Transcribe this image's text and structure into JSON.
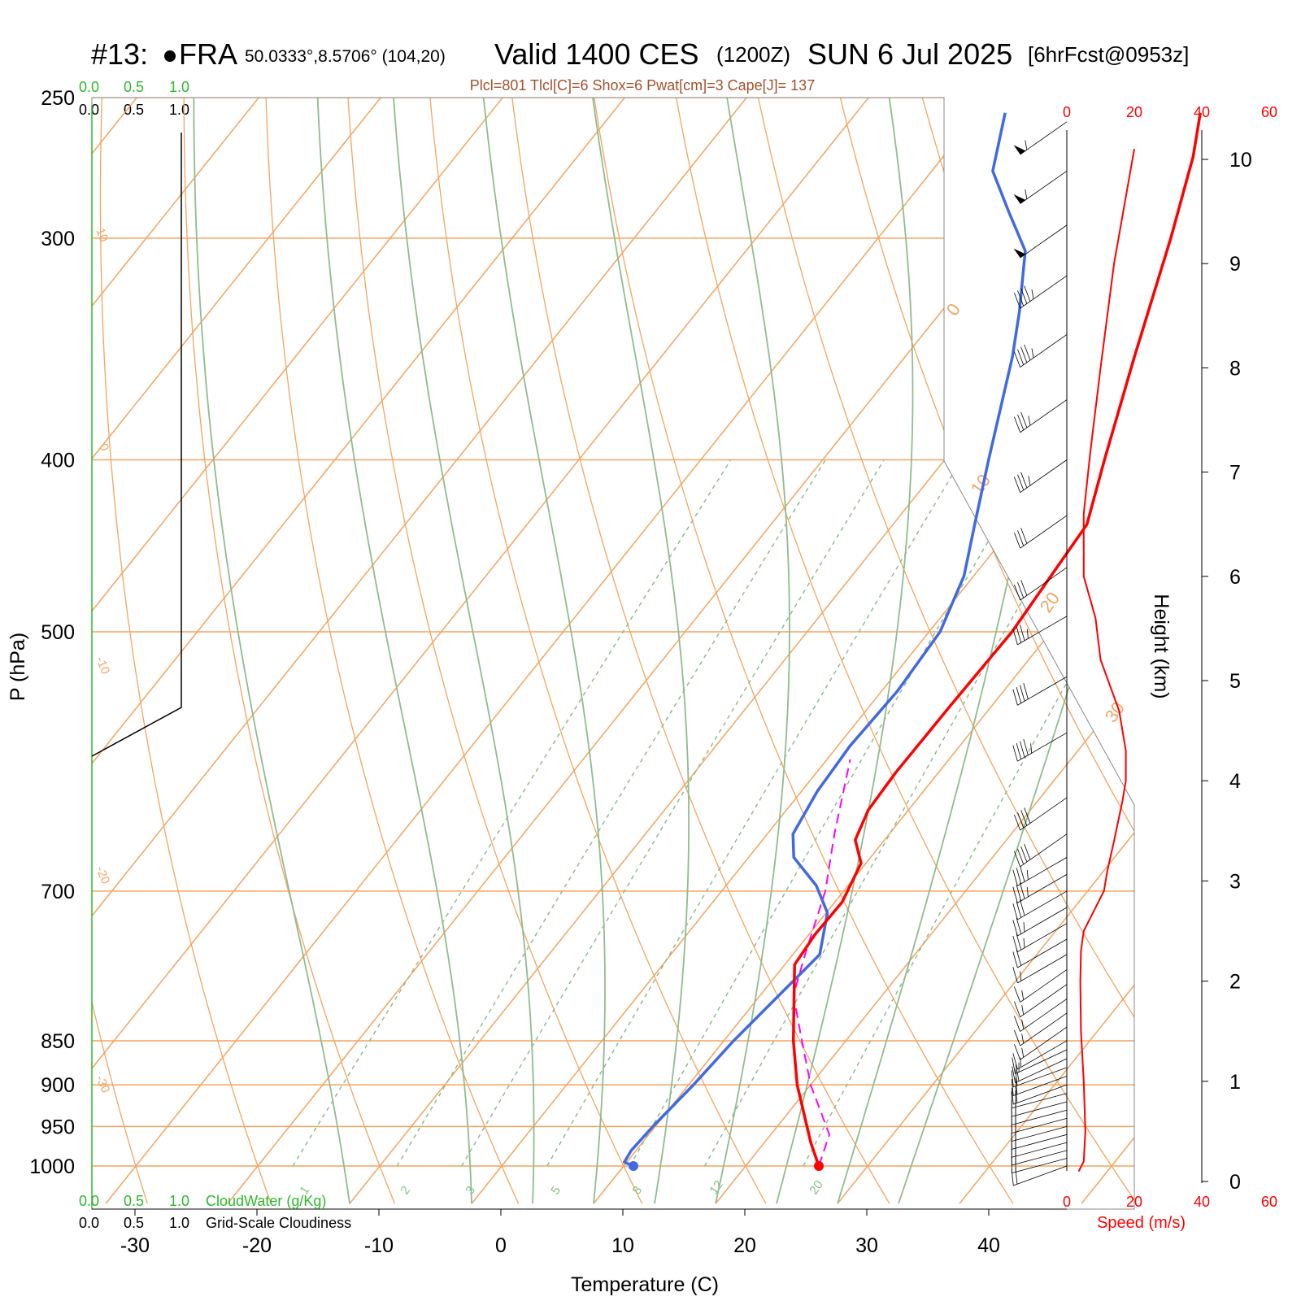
{
  "header": {
    "station_label": "#13: ",
    "station_name": "FRA",
    "coords": "50.0333°,8.5706° (104,20)",
    "valid": "Valid 1400 CES",
    "utc": "(1200Z)",
    "date": "SUN 6 Jul 2025",
    "forecast": "[6hrFcst@0953z]",
    "indices": "Plcl=801 Tlcl[C]=6 Shox=6 Pwat[cm]=3 Cape[J]= 137"
  },
  "panels": {
    "cloud_top_green": [
      "0.0",
      "0.5",
      "1.0"
    ],
    "cloud_top_black": [
      "0.0",
      "0.5",
      "1.0"
    ],
    "cloud_bottom_green": [
      "0.0",
      "0.5",
      "1.0"
    ],
    "cloud_bottom_black": [
      "0.0",
      "0.5",
      "1.0"
    ],
    "cloudwater_label": "CloudWater (g/Kg)",
    "cloudiness_label": "Grid-Scale Cloudiness",
    "speed_ticks": [
      "0",
      "20",
      "40",
      "60"
    ],
    "speed_label": "Speed (m/s)",
    "height_label": "Height (km)"
  },
  "colors": {
    "temperature": "#ff0000",
    "dewpoint": "#4169e1",
    "parcel": "#ff00ff",
    "isotherm": "#f4a460",
    "adiabat": "#8fbc8f",
    "speed": "#ff0000"
  },
  "chart_data": {
    "type": "line",
    "xlabel": "Temperature (C)",
    "ylabel": "P (hPa)",
    "xticks": [
      -30,
      -20,
      -10,
      0,
      10,
      20,
      30,
      40
    ],
    "yticks": [
      250,
      300,
      400,
      500,
      700,
      850,
      900,
      950,
      1000
    ],
    "height_ticks": [
      0,
      1,
      2,
      3,
      4,
      5,
      6,
      7,
      8,
      9,
      10
    ],
    "isotherm_labels": [
      "10",
      "0",
      "-10",
      "-20",
      "-30",
      "0",
      "10",
      "20",
      "30"
    ],
    "mixing_ratio_labels": [
      "1",
      "2",
      "3",
      "5",
      "8",
      "12",
      "20"
    ],
    "series": [
      {
        "label": "temperature",
        "points": [
          [
            1000,
            26.0
          ],
          [
            970,
            23.8
          ],
          [
            900,
            18.9
          ],
          [
            850,
            15.7
          ],
          [
            770,
            10.8
          ],
          [
            740,
            10.5
          ],
          [
            710,
            10.6
          ],
          [
            675,
            9.6
          ],
          [
            655,
            7.6
          ],
          [
            630,
            6.7
          ],
          [
            600,
            6.5
          ],
          [
            550,
            6.6
          ],
          [
            500,
            6.8
          ],
          [
            470,
            6.4
          ],
          [
            435,
            5.9
          ],
          [
            400,
            3.1
          ],
          [
            350,
            -1.2
          ],
          [
            300,
            -6.0
          ],
          [
            270,
            -9.5
          ],
          [
            255,
            -11.8
          ]
        ]
      },
      {
        "label": "dewpoint",
        "points": [
          [
            1000,
            10.8
          ],
          [
            995,
            9.8
          ],
          [
            980,
            9.6
          ],
          [
            950,
            9.8
          ],
          [
            900,
            10.4
          ],
          [
            850,
            10.8
          ],
          [
            760,
            12.2
          ],
          [
            720,
            10.1
          ],
          [
            695,
            7.4
          ],
          [
            670,
            3.7
          ],
          [
            650,
            2.1
          ],
          [
            615,
            1.3
          ],
          [
            580,
            1.0
          ],
          [
            540,
            1.3
          ],
          [
            500,
            0.9
          ],
          [
            465,
            -0.8
          ],
          [
            435,
            -3.3
          ],
          [
            400,
            -6.4
          ],
          [
            350,
            -11.2
          ],
          [
            330,
            -13.6
          ],
          [
            305,
            -17.1
          ],
          [
            290,
            -21.0
          ],
          [
            275,
            -25.0
          ],
          [
            255,
            -27.8
          ]
        ]
      },
      {
        "label": "parcel",
        "points": [
          [
            1000,
            26.0
          ],
          [
            960,
            24.8
          ],
          [
            900,
            20.0
          ],
          [
            850,
            16.4
          ],
          [
            801,
            12.7
          ],
          [
            760,
            11.0
          ],
          [
            700,
            8.5
          ],
          [
            650,
            5.5
          ],
          [
            590,
            1.9
          ]
        ]
      }
    ],
    "wind_barbs": [
      {
        "p": 1000,
        "speed": 10,
        "dir": 250
      },
      {
        "p": 990,
        "speed": 10,
        "dir": 255
      },
      {
        "p": 980,
        "speed": 10,
        "dir": 255
      },
      {
        "p": 970,
        "speed": 11,
        "dir": 255
      },
      {
        "p": 960,
        "speed": 11,
        "dir": 255
      },
      {
        "p": 950,
        "speed": 11,
        "dir": 255
      },
      {
        "p": 940,
        "speed": 11,
        "dir": 255
      },
      {
        "p": 930,
        "speed": 11,
        "dir": 255
      },
      {
        "p": 920,
        "speed": 11,
        "dir": 255
      },
      {
        "p": 910,
        "speed": 10,
        "dir": 255
      },
      {
        "p": 900,
        "speed": 10,
        "dir": 250
      },
      {
        "p": 890,
        "speed": 10,
        "dir": 250
      },
      {
        "p": 880,
        "speed": 10,
        "dir": 250
      },
      {
        "p": 870,
        "speed": 10,
        "dir": 245
      },
      {
        "p": 860,
        "speed": 9,
        "dir": 245
      },
      {
        "p": 850,
        "speed": 9,
        "dir": 240
      },
      {
        "p": 835,
        "speed": 9,
        "dir": 235
      },
      {
        "p": 820,
        "speed": 9,
        "dir": 235
      },
      {
        "p": 805,
        "speed": 9,
        "dir": 235
      },
      {
        "p": 790,
        "speed": 9,
        "dir": 235
      },
      {
        "p": 775,
        "speed": 9,
        "dir": 235
      },
      {
        "p": 760,
        "speed": 9,
        "dir": 240
      },
      {
        "p": 745,
        "speed": 10,
        "dir": 240
      },
      {
        "p": 730,
        "speed": 12,
        "dir": 240
      },
      {
        "p": 715,
        "speed": 14,
        "dir": 240
      },
      {
        "p": 700,
        "speed": 16,
        "dir": 240
      },
      {
        "p": 685,
        "speed": 17,
        "dir": 240
      },
      {
        "p": 670,
        "speed": 18,
        "dir": 240
      },
      {
        "p": 650,
        "speed": 20,
        "dir": 235
      },
      {
        "p": 620,
        "speed": 21,
        "dir": 235
      },
      {
        "p": 570,
        "speed": 22,
        "dir": 240
      },
      {
        "p": 530,
        "speed": 20,
        "dir": 240
      },
      {
        "p": 490,
        "speed": 17,
        "dir": 240
      },
      {
        "p": 460,
        "speed": 15,
        "dir": 235
      },
      {
        "p": 430,
        "speed": 16,
        "dir": 235
      },
      {
        "p": 400,
        "speed": 18,
        "dir": 235
      },
      {
        "p": 370,
        "speed": 19,
        "dir": 235
      },
      {
        "p": 340,
        "speed": 22,
        "dir": 235
      },
      {
        "p": 315,
        "speed": 24,
        "dir": 235
      },
      {
        "p": 295,
        "speed": 26,
        "dir": 235
      },
      {
        "p": 275,
        "speed": 28,
        "dir": 235
      },
      {
        "p": 258,
        "speed": 29,
        "dir": 235
      }
    ],
    "speed_profile": {
      "heights_km": [
        0.1,
        0.2,
        0.5,
        1.0,
        1.5,
        2.0,
        2.3,
        2.5,
        2.7,
        2.9,
        3.1,
        3.4,
        3.8,
        4.0,
        4.3,
        4.7,
        5.2,
        5.6,
        6.0,
        6.6,
        7.2,
        8.0,
        9.0,
        10.1
      ],
      "speeds_ms": [
        3.5,
        5.0,
        5.5,
        5.0,
        4.2,
        4.0,
        4.2,
        5.0,
        8.0,
        11.0,
        12.0,
        14.0,
        16.5,
        17.5,
        17.5,
        15.5,
        10.0,
        8.5,
        5.0,
        5.0,
        7.0,
        10.0,
        14.0,
        20.0
      ]
    }
  }
}
